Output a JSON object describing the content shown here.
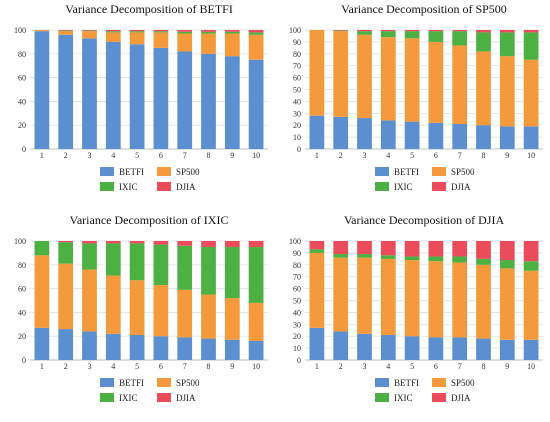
{
  "colors": {
    "BETFI": "#5b8fd0",
    "SP500": "#f59a3c",
    "IXIC": "#4cb043",
    "DJIA": "#ea4c5c",
    "grid": "#dcdcdc",
    "axis": "#bfbfbf"
  },
  "chart_data": [
    {
      "type": "bar",
      "stacked": true,
      "title": "Variance Decomposition of BETFI",
      "categories": [
        "1",
        "2",
        "3",
        "4",
        "5",
        "6",
        "7",
        "8",
        "9",
        "10"
      ],
      "ylim": [
        0,
        100
      ],
      "yticks": [
        "0",
        "20",
        "40",
        "60",
        "80",
        "100"
      ],
      "legend": [
        "BETFI",
        "SP500",
        "IXIC",
        "DJIA"
      ],
      "series": [
        {
          "name": "BETFI",
          "values": [
            99,
            96,
            93,
            90,
            88,
            85,
            82,
            80,
            78,
            75
          ]
        },
        {
          "name": "SP500",
          "values": [
            1,
            3,
            6,
            8,
            10,
            13,
            15,
            17,
            19,
            21
          ]
        },
        {
          "name": "IXIC",
          "values": [
            0,
            0.5,
            0.5,
            1,
            1,
            1,
            1.5,
            1.5,
            1.5,
            2
          ]
        },
        {
          "name": "DJIA",
          "values": [
            0,
            0.5,
            0.5,
            1,
            1,
            1,
            1.5,
            1.5,
            1.5,
            2
          ]
        }
      ]
    },
    {
      "type": "bar",
      "stacked": true,
      "title": "Variance Decomposition of SP500",
      "categories": [
        "1",
        "2",
        "3",
        "4",
        "5",
        "6",
        "7",
        "8",
        "9",
        "10"
      ],
      "ylim": [
        0,
        100
      ],
      "yticks": [
        "0",
        "10",
        "20",
        "30",
        "40",
        "50",
        "60",
        "70",
        "80",
        "90",
        "100"
      ],
      "legend": [
        "BETFI",
        "SP500",
        "IXIC",
        "DJIA"
      ],
      "series": [
        {
          "name": "BETFI",
          "values": [
            28,
            27,
            26,
            24,
            23,
            22,
            21,
            20,
            19,
            19
          ]
        },
        {
          "name": "SP500",
          "values": [
            72,
            72,
            70,
            70,
            70,
            68,
            66,
            62,
            59,
            56
          ]
        },
        {
          "name": "IXIC",
          "values": [
            0,
            0.5,
            3,
            5,
            6,
            9,
            12,
            16,
            20,
            23
          ]
        },
        {
          "name": "DJIA",
          "values": [
            0,
            0.5,
            1,
            1,
            1,
            1,
            1,
            2,
            2,
            2
          ]
        }
      ]
    },
    {
      "type": "bar",
      "stacked": true,
      "title": "Variance Decomposition of IXIC",
      "categories": [
        "1",
        "2",
        "3",
        "4",
        "5",
        "6",
        "7",
        "8",
        "9",
        "10"
      ],
      "ylim": [
        0,
        100
      ],
      "yticks": [
        "0",
        "20",
        "40",
        "60",
        "80",
        "100"
      ],
      "legend": [
        "BETFI",
        "SP500",
        "IXIC",
        "DJIA"
      ],
      "series": [
        {
          "name": "BETFI",
          "values": [
            27,
            26,
            24,
            22,
            21,
            20,
            19,
            18,
            17,
            16
          ]
        },
        {
          "name": "SP500",
          "values": [
            61,
            55,
            52,
            49,
            46,
            43,
            40,
            37,
            35,
            32
          ]
        },
        {
          "name": "IXIC",
          "values": [
            12,
            18,
            22,
            27,
            31,
            34,
            37,
            40,
            43,
            47
          ]
        },
        {
          "name": "DJIA",
          "values": [
            0,
            1,
            2,
            2,
            2,
            3,
            4,
            5,
            5,
            5
          ]
        }
      ]
    },
    {
      "type": "bar",
      "stacked": true,
      "title": "Variance Decomposition of DJIA",
      "categories": [
        "1",
        "2",
        "3",
        "4",
        "5",
        "6",
        "7",
        "8",
        "9",
        "10"
      ],
      "ylim": [
        0,
        100
      ],
      "yticks": [
        "0",
        "10",
        "20",
        "30",
        "40",
        "50",
        "60",
        "70",
        "80",
        "90",
        "100"
      ],
      "legend": [
        "BETFI",
        "SP500",
        "IXIC",
        "DJIA"
      ],
      "series": [
        {
          "name": "BETFI",
          "values": [
            27,
            24,
            22,
            21,
            20,
            19,
            19,
            18,
            17,
            17
          ]
        },
        {
          "name": "SP500",
          "values": [
            63,
            62,
            64,
            64,
            64,
            64,
            63,
            62,
            60,
            58
          ]
        },
        {
          "name": "IXIC",
          "values": [
            3,
            3,
            3,
            3,
            3,
            4,
            5,
            5,
            7,
            8
          ]
        },
        {
          "name": "DJIA",
          "values": [
            7,
            11,
            11,
            12,
            13,
            13,
            13,
            15,
            16,
            17
          ]
        }
      ]
    }
  ]
}
